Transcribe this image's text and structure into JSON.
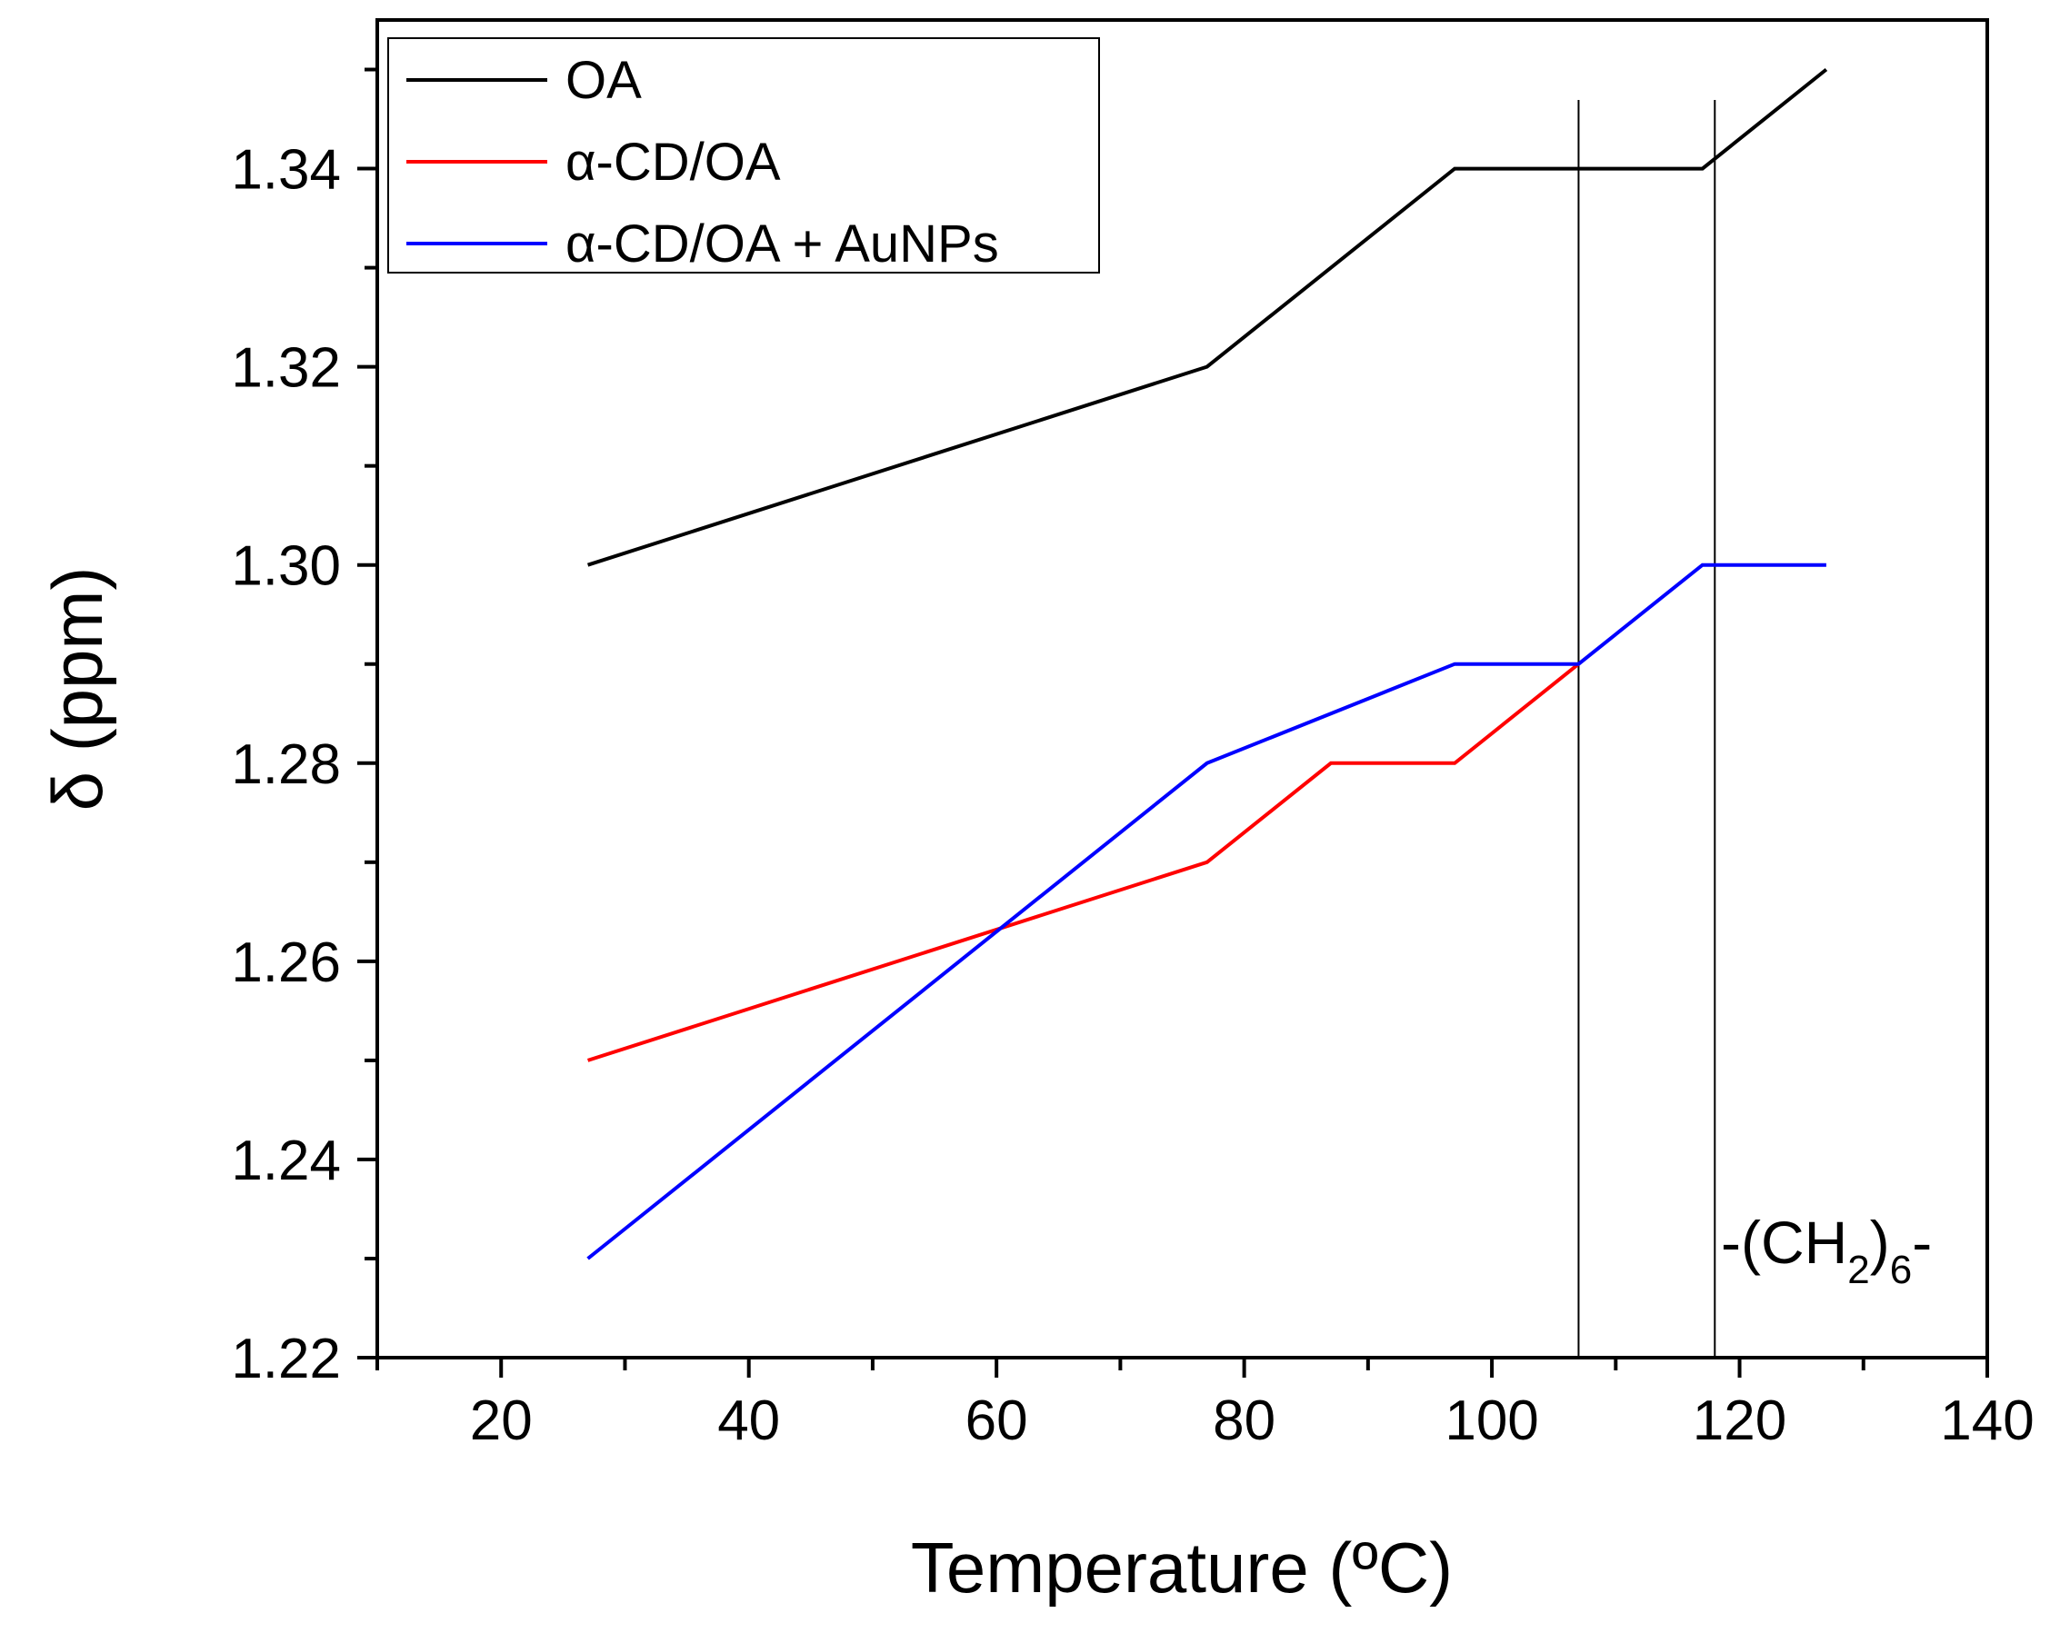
{
  "chart_data": {
    "type": "line",
    "title": "",
    "xlabel": "Temperature (ºC)",
    "ylabel": "δ (ppm)",
    "xlim": [
      10,
      140
    ],
    "ylim": [
      1.22,
      1.355
    ],
    "xticks": [
      20,
      40,
      60,
      80,
      100,
      120,
      140
    ],
    "xtick_labels": [
      "20",
      "40",
      "60",
      "80",
      "100",
      "120",
      "140"
    ],
    "yticks": [
      1.22,
      1.24,
      1.26,
      1.28,
      1.3,
      1.32,
      1.34
    ],
    "ytick_labels": [
      "1.22",
      "1.24",
      "1.26",
      "1.28",
      "1.30",
      "1.32",
      "1.34"
    ],
    "grid": false,
    "legend_position": "top-left",
    "series": [
      {
        "name": "OA",
        "color": "#000000",
        "x": [
          27,
          77,
          97,
          117,
          127
        ],
        "y": [
          1.3,
          1.32,
          1.34,
          1.34,
          1.35
        ]
      },
      {
        "name": "α-CD/OA",
        "color": "#ff0000",
        "x": [
          27,
          77,
          87,
          97,
          107
        ],
        "y": [
          1.25,
          1.27,
          1.28,
          1.28,
          1.29
        ]
      },
      {
        "name": "α-CD/OA + AuNPs",
        "color": "#0000ff",
        "x": [
          27,
          77,
          97,
          107,
          117,
          127
        ],
        "y": [
          1.23,
          1.28,
          1.29,
          1.29,
          1.3,
          1.3
        ]
      }
    ],
    "reference_lines_x": [
      107,
      118
    ],
    "annotation": {
      "prefix": "-(CH",
      "sub1": "2",
      "mid": ")",
      "sub2": "6",
      "suffix": "-"
    }
  }
}
